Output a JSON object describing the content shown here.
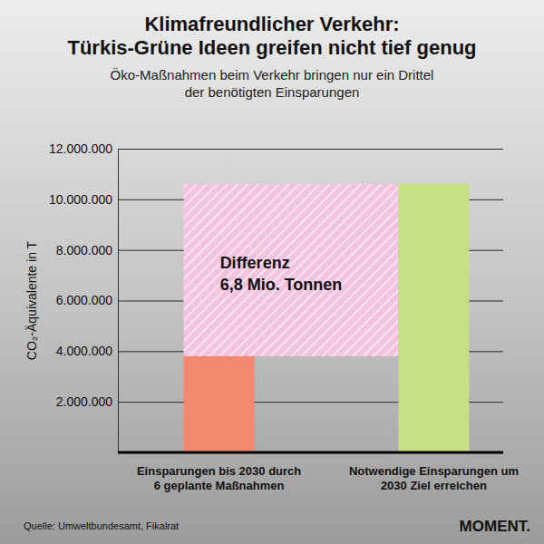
{
  "chart_data": {
    "type": "bar",
    "title": "Klimafreundlicher Verkehr:\nTürkis-Grüne Ideen greifen nicht tief genug",
    "subtitle": "Öko-Maßnahmen beim Verkehr bringen nur ein Drittel\nder benötigten Einsparungen",
    "y_label": "CO₂-Äquivalente in T",
    "categories": [
      "Einsparungen bis 2030 durch\n6 geplante Maßnahmen",
      "Notwendige Einsparungen um\n2030 Ziel erreichen"
    ],
    "values": [
      3800000,
      10600000
    ],
    "colors": [
      "#f0896e",
      "#c9df83"
    ],
    "ylim": [
      0,
      12000000
    ],
    "yticks": [
      {
        "value": 2000000,
        "label": "2.000.000"
      },
      {
        "value": 4000000,
        "label": "4.000.000"
      },
      {
        "value": 6000000,
        "label": "6.000.000"
      },
      {
        "value": 8000000,
        "label": "8.000.000"
      },
      {
        "value": 10000000,
        "label": "10.000.000"
      },
      {
        "value": 12000000,
        "label": "12.000.000"
      }
    ],
    "grid": true,
    "annotation": [
      "Differenz",
      "6,8 Mio. Tonnen"
    ],
    "source": "Quelle: Umweltbundesamt, Fikalrat",
    "brand": "MOMENT."
  }
}
